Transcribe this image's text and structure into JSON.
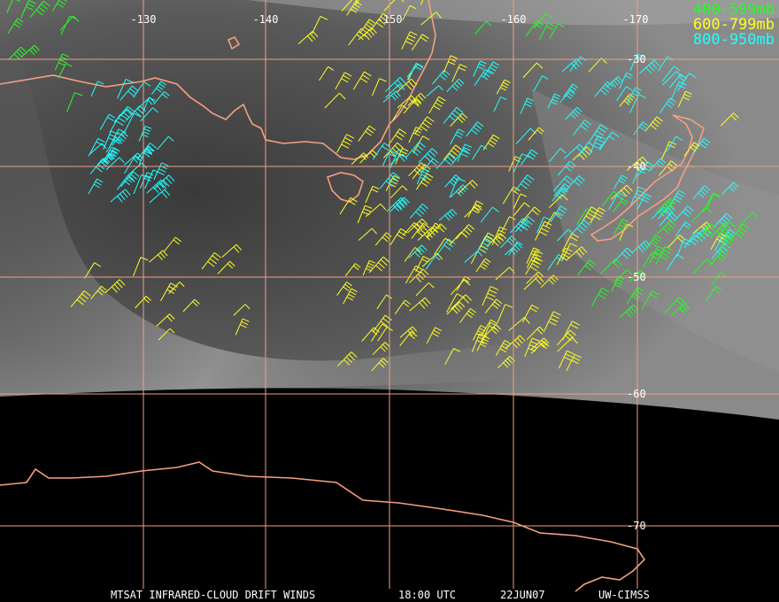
{
  "map": {
    "longitude_labels": [
      "-130",
      "-140",
      "-150",
      "-160",
      "-170"
    ],
    "latitude_labels": [
      "-30",
      "-40",
      "-50",
      "-60",
      "-70"
    ],
    "legend": [
      {
        "label": "400-599mb",
        "color": "#22ff22"
      },
      {
        "label": "600-799mb",
        "color": "#ffff22"
      },
      {
        "label": "800-950mb",
        "color": "#22ffff"
      }
    ],
    "footer": [
      "MTSAT INFRARED-CLOUD DRIFT WINDS",
      "18:00 UTC",
      "22JUN07",
      "UW-CIMSS"
    ]
  }
}
